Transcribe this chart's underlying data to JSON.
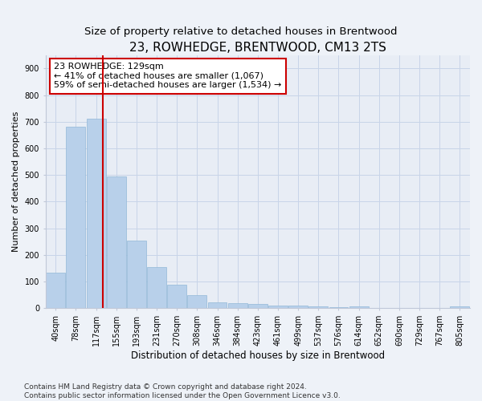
{
  "title": "23, ROWHEDGE, BRENTWOOD, CM13 2TS",
  "subtitle": "Size of property relative to detached houses in Brentwood",
  "xlabel": "Distribution of detached houses by size in Brentwood",
  "ylabel": "Number of detached properties",
  "bar_labels": [
    "40sqm",
    "78sqm",
    "117sqm",
    "155sqm",
    "193sqm",
    "231sqm",
    "270sqm",
    "308sqm",
    "346sqm",
    "384sqm",
    "423sqm",
    "461sqm",
    "499sqm",
    "537sqm",
    "576sqm",
    "614sqm",
    "652sqm",
    "690sqm",
    "729sqm",
    "767sqm",
    "805sqm"
  ],
  "bar_heights": [
    135,
    680,
    710,
    495,
    255,
    155,
    90,
    50,
    23,
    18,
    15,
    10,
    10,
    7,
    3,
    7,
    2,
    0,
    2,
    0,
    8
  ],
  "bar_color": "#b8d0ea",
  "bar_edge_color": "#92b8d8",
  "vline_color": "#cc0000",
  "annotation_text": "23 ROWHEDGE: 129sqm\n← 41% of detached houses are smaller (1,067)\n59% of semi-detached houses are larger (1,534) →",
  "annotation_box_color": "#ffffff",
  "annotation_box_edge_color": "#cc0000",
  "ylim": [
    0,
    950
  ],
  "yticks": [
    0,
    100,
    200,
    300,
    400,
    500,
    600,
    700,
    800,
    900
  ],
  "footer_line1": "Contains HM Land Registry data © Crown copyright and database right 2024.",
  "footer_line2": "Contains public sector information licensed under the Open Government Licence v3.0.",
  "bg_color": "#eef2f8",
  "plot_bg_color": "#e8edf5",
  "title_fontsize": 11,
  "subtitle_fontsize": 9.5,
  "xlabel_fontsize": 8.5,
  "ylabel_fontsize": 8,
  "tick_fontsize": 7,
  "footer_fontsize": 6.5,
  "annotation_fontsize": 8
}
